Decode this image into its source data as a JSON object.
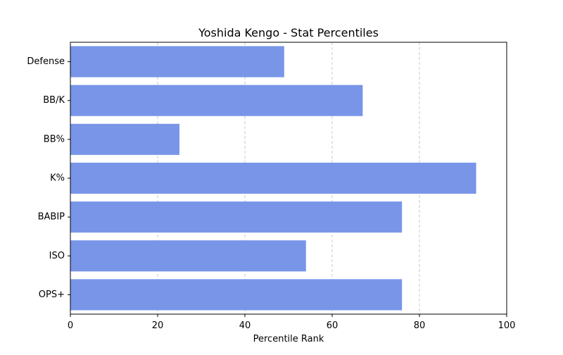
{
  "chart_data": {
    "type": "bar",
    "orientation": "horizontal",
    "title": "Yoshida Kengo - Stat Percentiles",
    "xlabel": "Percentile Rank",
    "ylabel": "",
    "categories": [
      "OPS+",
      "ISO",
      "BABIP",
      "K%",
      "BB%",
      "BB/K",
      "Defense"
    ],
    "values": [
      76,
      54,
      76,
      93,
      25,
      67,
      49
    ],
    "xlim": [
      0,
      100
    ],
    "xticks": [
      0,
      20,
      40,
      60,
      80,
      100
    ],
    "grid": "x-dashed",
    "bar_color": "#7895e8",
    "grid_color": "#c8c8c8"
  }
}
